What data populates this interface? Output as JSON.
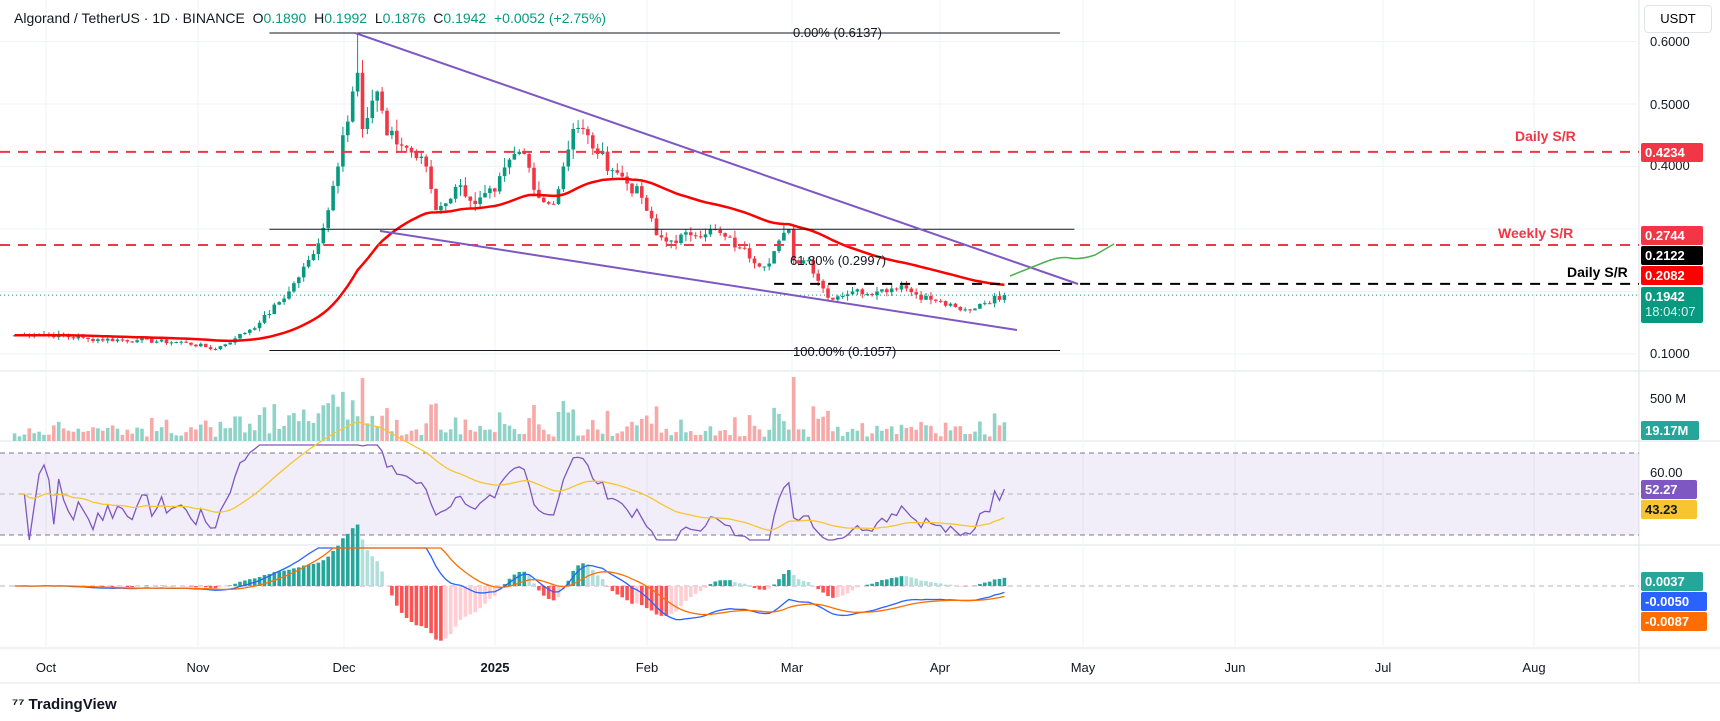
{
  "header": {
    "symbol": "Algorand / TetherUS · 1D · BINANCE",
    "o_label": "O",
    "o": "0.1890",
    "h_label": "H",
    "h": "0.1992",
    "l_label": "L",
    "l": "0.1876",
    "c_label": "C",
    "c": "0.1942",
    "change": "+0.0052 (+2.75%)"
  },
  "currency": "USDT",
  "price_axis": [
    "0.6000",
    "0.5000",
    "0.4000",
    "0.1000"
  ],
  "volume_axis": "500 M",
  "rsi_axis": "60.00",
  "time_axis": [
    "Oct",
    "Nov",
    "Dec",
    "2025",
    "Feb",
    "Mar",
    "Apr",
    "May",
    "Jun",
    "Jul",
    "Aug"
  ],
  "tags": {
    "daily_sr_top": "0.4234",
    "weekly_sr": "0.2744",
    "daily_sr": "0.2122",
    "ema": "0.2082",
    "last": "0.1942",
    "countdown": "18:04:07",
    "volume": "19.17M",
    "rsi": "52.27",
    "rsi_ma": "43.23",
    "macd_hist": "0.0037",
    "macd": "-0.0050",
    "signal": "-0.0087"
  },
  "levels": {
    "daily_sr_top_label": "Daily S/R",
    "weekly_sr_label": "Weekly S/R",
    "daily_sr_label": "Daily S/R",
    "fib0": "0.00% (0.6137)",
    "fib618": "61.80% (0.2997)",
    "fib100": "100.00% (0.1057)"
  },
  "colors": {
    "up": "#089981",
    "down": "#f23645",
    "ema": "#ff0000",
    "trend": "#7e57c2",
    "rsi": "#7e57c2",
    "rsi_ma": "#f7c531",
    "macd": "#2962ff",
    "signal": "#ff6d00"
  },
  "footer": "TradingView",
  "chart_data": {
    "type": "candlestick",
    "title": "Algorand / TetherUS 1D",
    "start_date": "2024-09-25",
    "ylim": [
      0.08,
      0.64
    ],
    "close_anchors": [
      [
        0,
        0.13
      ],
      [
        6,
        0.132
      ],
      [
        15,
        0.124
      ],
      [
        25,
        0.122
      ],
      [
        35,
        0.118
      ],
      [
        41,
        0.108
      ],
      [
        45,
        0.125
      ],
      [
        50,
        0.15
      ],
      [
        56,
        0.2
      ],
      [
        61,
        0.26
      ],
      [
        64,
        0.33
      ],
      [
        67,
        0.45
      ],
      [
        69,
        0.52
      ],
      [
        70,
        0.55
      ],
      [
        71,
        0.46
      ],
      [
        74,
        0.52
      ],
      [
        76,
        0.45
      ],
      [
        80,
        0.43
      ],
      [
        84,
        0.4
      ],
      [
        86,
        0.33
      ],
      [
        91,
        0.37
      ],
      [
        94,
        0.34
      ],
      [
        98,
        0.36
      ],
      [
        102,
        0.42
      ],
      [
        104,
        0.42
      ],
      [
        107,
        0.35
      ],
      [
        110,
        0.34
      ],
      [
        112,
        0.4
      ],
      [
        114,
        0.46
      ],
      [
        117,
        0.45
      ],
      [
        119,
        0.42
      ],
      [
        123,
        0.39
      ],
      [
        128,
        0.35
      ],
      [
        131,
        0.29
      ],
      [
        133,
        0.28
      ],
      [
        138,
        0.29
      ],
      [
        142,
        0.3
      ],
      [
        148,
        0.27
      ],
      [
        153,
        0.24
      ],
      [
        158,
        0.3
      ],
      [
        159,
        0.25
      ],
      [
        162,
        0.25
      ],
      [
        166,
        0.19
      ],
      [
        171,
        0.2
      ],
      [
        176,
        0.2
      ],
      [
        181,
        0.21
      ],
      [
        184,
        0.195
      ],
      [
        188,
        0.185
      ],
      [
        193,
        0.17
      ],
      [
        195,
        0.17
      ],
      [
        197,
        0.18
      ],
      [
        202,
        0.1942
      ]
    ],
    "ema50_last": 0.2082,
    "fib": {
      "high": 0.6137,
      "level_618": 0.2997,
      "low": 0.1057
    },
    "horizontal_levels": [
      0.4234,
      0.2744,
      0.2122
    ],
    "rsi_last": 52.27,
    "rsi_ma_last": 43.23,
    "macd_last": -0.005,
    "signal_last": -0.0087,
    "hist_last": 0.0037
  }
}
